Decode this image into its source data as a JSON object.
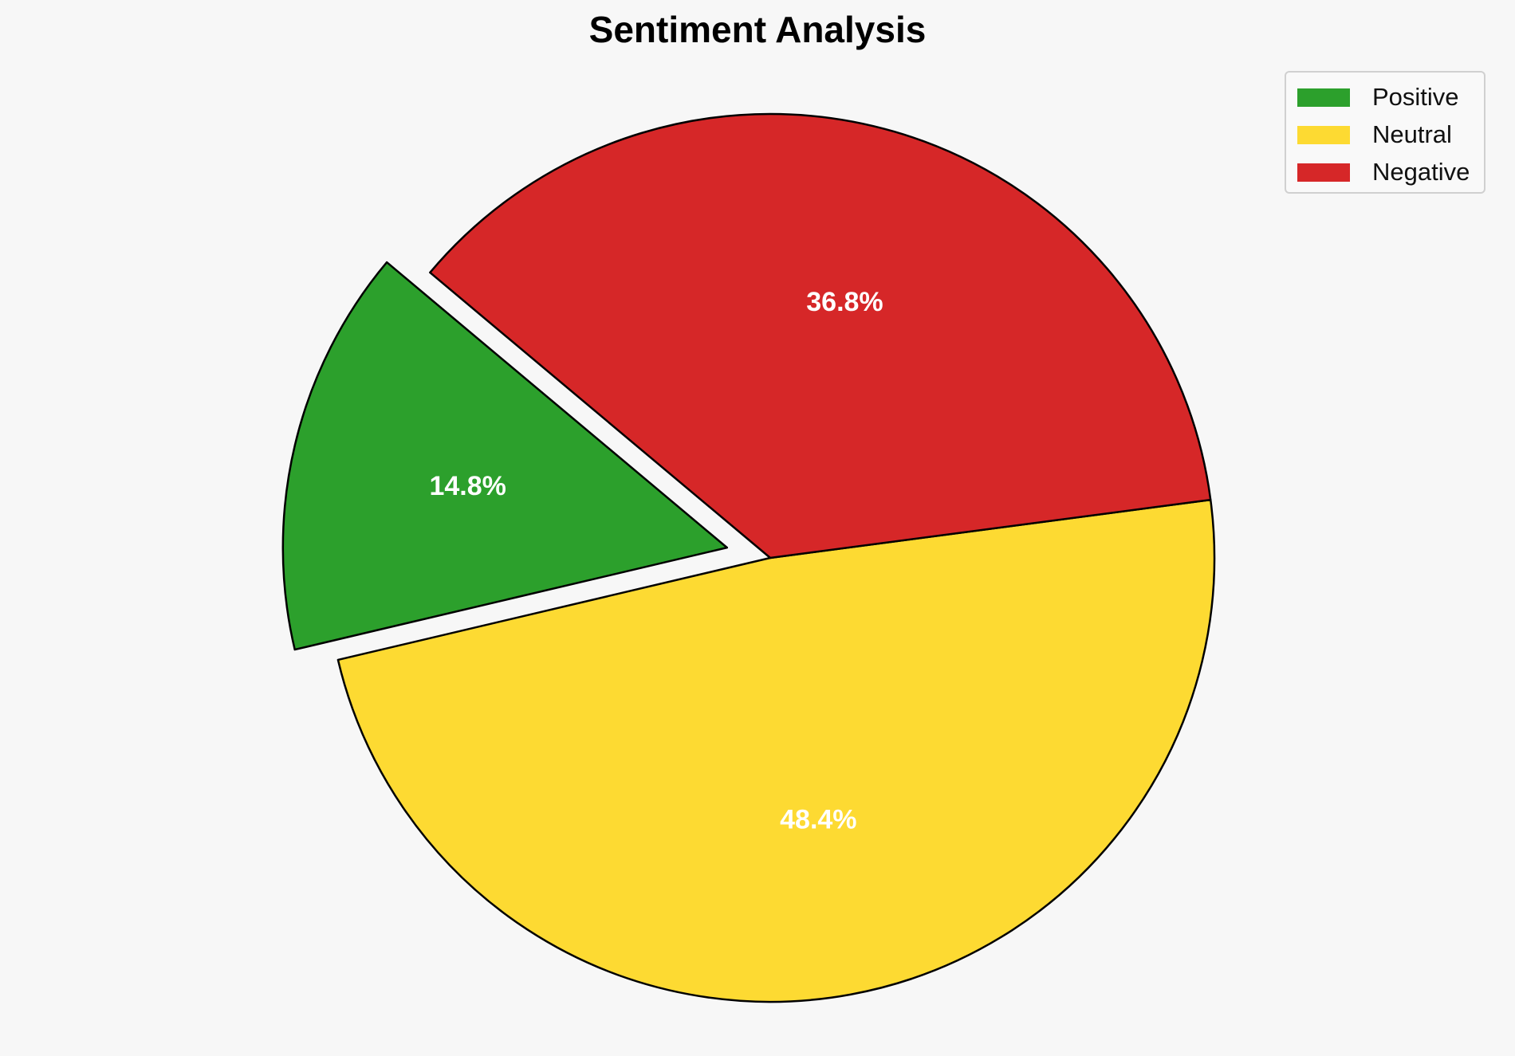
{
  "chart_data": {
    "type": "pie",
    "title": "Sentiment Analysis",
    "categories": [
      "Positive",
      "Neutral",
      "Negative"
    ],
    "values": [
      14.8,
      48.4,
      36.8
    ],
    "value_labels": [
      "14.8%",
      "48.4%",
      "36.8%"
    ],
    "colors": [
      "#2ca02c",
      "#fdda32",
      "#d62728"
    ],
    "exploded": [
      true,
      false,
      false
    ],
    "start_angle_deg": 140,
    "direction": "counterclockwise",
    "edge_color": "#000000",
    "label_color": "#ffffff",
    "legend_position": "top-right"
  }
}
